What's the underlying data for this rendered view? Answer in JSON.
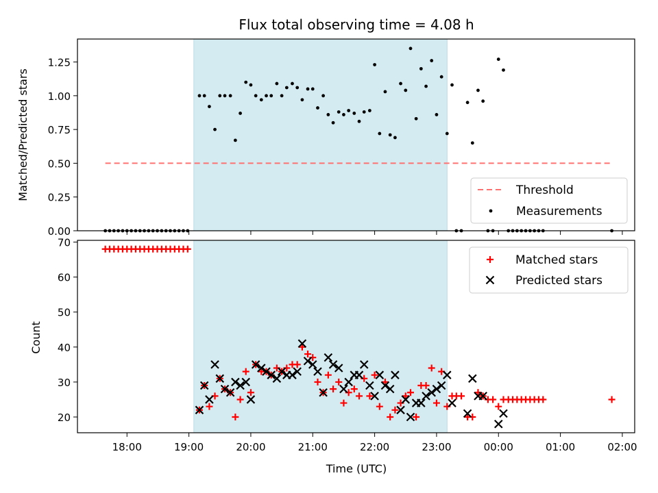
{
  "chart_data": [
    {
      "type": "scatter",
      "title": "Flux total observing time = 4.08 h",
      "xlabel": "",
      "ylabel": "Matched/Predicted stars",
      "ylim": [
        0,
        1.42
      ],
      "y_ticks": [
        0,
        0.25,
        0.5,
        0.75,
        1.0,
        1.25
      ],
      "y_tick_labels": [
        "0.00",
        "0.25",
        "0.50",
        "0.75",
        "1.00",
        "1.25"
      ],
      "x_range_hours": [
        17.2,
        26.2
      ],
      "shaded_region": {
        "start": 19.08,
        "end": 23.17,
        "color": "#d4ebf1"
      },
      "threshold": {
        "label": "Threshold",
        "value": 0.5,
        "x_start": 17.65,
        "x_end": 25.83,
        "color": "#ff7070"
      },
      "legend": {
        "position": "lower-right",
        "entries": [
          "Threshold",
          "Measurements"
        ]
      },
      "series": [
        {
          "name": "Measurements",
          "color": "#000000",
          "points": [
            [
              17.65,
              0
            ],
            [
              17.72,
              0
            ],
            [
              17.79,
              0
            ],
            [
              17.86,
              0
            ],
            [
              17.93,
              0
            ],
            [
              18.0,
              0
            ],
            [
              18.07,
              0
            ],
            [
              18.14,
              0
            ],
            [
              18.21,
              0
            ],
            [
              18.28,
              0
            ],
            [
              18.35,
              0
            ],
            [
              18.42,
              0
            ],
            [
              18.49,
              0
            ],
            [
              18.56,
              0
            ],
            [
              18.63,
              0
            ],
            [
              18.7,
              0
            ],
            [
              18.77,
              0
            ],
            [
              18.84,
              0
            ],
            [
              18.91,
              0
            ],
            [
              18.98,
              0
            ],
            [
              19.17,
              1.0
            ],
            [
              19.25,
              1.0
            ],
            [
              19.33,
              0.92
            ],
            [
              19.42,
              0.75
            ],
            [
              19.5,
              1.0
            ],
            [
              19.58,
              1.0
            ],
            [
              19.67,
              1.0
            ],
            [
              19.75,
              0.67
            ],
            [
              19.83,
              0.87
            ],
            [
              19.92,
              1.1
            ],
            [
              20.0,
              1.08
            ],
            [
              20.08,
              1.0
            ],
            [
              20.17,
              0.97
            ],
            [
              20.25,
              1.0
            ],
            [
              20.33,
              1.0
            ],
            [
              20.42,
              1.09
            ],
            [
              20.5,
              1.0
            ],
            [
              20.58,
              1.06
            ],
            [
              20.67,
              1.09
            ],
            [
              20.75,
              1.06
            ],
            [
              20.83,
              0.97
            ],
            [
              20.92,
              1.05
            ],
            [
              21.0,
              1.05
            ],
            [
              21.08,
              0.91
            ],
            [
              21.17,
              1.0
            ],
            [
              21.25,
              0.86
            ],
            [
              21.33,
              0.8
            ],
            [
              21.42,
              0.88
            ],
            [
              21.5,
              0.86
            ],
            [
              21.58,
              0.89
            ],
            [
              21.67,
              0.87
            ],
            [
              21.75,
              0.81
            ],
            [
              21.83,
              0.88
            ],
            [
              21.92,
              0.89
            ],
            [
              22.0,
              1.23
            ],
            [
              22.08,
              0.72
            ],
            [
              22.17,
              1.03
            ],
            [
              22.25,
              0.71
            ],
            [
              22.33,
              0.69
            ],
            [
              22.42,
              1.09
            ],
            [
              22.5,
              1.04
            ],
            [
              22.58,
              1.35
            ],
            [
              22.67,
              0.83
            ],
            [
              22.75,
              1.2
            ],
            [
              22.83,
              1.07
            ],
            [
              22.92,
              1.26
            ],
            [
              23.0,
              0.86
            ],
            [
              23.08,
              1.14
            ],
            [
              23.17,
              0.72
            ],
            [
              23.25,
              1.08
            ],
            [
              23.32,
              0
            ],
            [
              23.4,
              0
            ],
            [
              23.5,
              0.95
            ],
            [
              23.58,
              0.65
            ],
            [
              23.67,
              1.04
            ],
            [
              23.75,
              0.96
            ],
            [
              23.83,
              0
            ],
            [
              23.91,
              0
            ],
            [
              24.0,
              1.27
            ],
            [
              24.08,
              1.19
            ],
            [
              24.16,
              0
            ],
            [
              24.23,
              0
            ],
            [
              24.3,
              0
            ],
            [
              24.37,
              0
            ],
            [
              24.44,
              0
            ],
            [
              24.51,
              0
            ],
            [
              24.58,
              0
            ],
            [
              24.65,
              0
            ],
            [
              24.72,
              0
            ],
            [
              25.83,
              0
            ]
          ]
        }
      ]
    },
    {
      "type": "scatter",
      "title": "",
      "xlabel": "Time (UTC)",
      "ylabel": "Count",
      "ylim": [
        15.5,
        70.5
      ],
      "y_ticks": [
        20,
        30,
        40,
        50,
        60,
        70
      ],
      "y_tick_labels": [
        "20",
        "30",
        "40",
        "50",
        "60",
        "70"
      ],
      "x_range_hours": [
        17.2,
        26.2
      ],
      "x_ticks": [
        18,
        19,
        20,
        21,
        22,
        23,
        24,
        25,
        26
      ],
      "x_tick_labels": [
        "18:00",
        "19:00",
        "20:00",
        "21:00",
        "22:00",
        "23:00",
        "00:00",
        "01:00",
        "02:00"
      ],
      "shaded_region": {
        "start": 19.08,
        "end": 23.17,
        "color": "#d4ebf1"
      },
      "legend": {
        "position": "top-right",
        "entries": [
          "Matched stars",
          "Predicted stars"
        ]
      },
      "series": [
        {
          "name": "Matched stars",
          "marker": "plus",
          "color": "#ff0000",
          "points": [
            [
              17.65,
              68
            ],
            [
              17.72,
              68
            ],
            [
              17.79,
              68
            ],
            [
              17.86,
              68
            ],
            [
              17.93,
              68
            ],
            [
              18.0,
              68
            ],
            [
              18.07,
              68
            ],
            [
              18.14,
              68
            ],
            [
              18.21,
              68
            ],
            [
              18.28,
              68
            ],
            [
              18.35,
              68
            ],
            [
              18.42,
              68
            ],
            [
              18.49,
              68
            ],
            [
              18.56,
              68
            ],
            [
              18.63,
              68
            ],
            [
              18.7,
              68
            ],
            [
              18.77,
              68
            ],
            [
              18.84,
              68
            ],
            [
              18.91,
              68
            ],
            [
              18.98,
              68
            ],
            [
              19.17,
              22
            ],
            [
              19.25,
              29
            ],
            [
              19.33,
              23
            ],
            [
              19.42,
              26
            ],
            [
              19.5,
              31
            ],
            [
              19.58,
              28
            ],
            [
              19.67,
              27
            ],
            [
              19.75,
              20
            ],
            [
              19.83,
              25
            ],
            [
              19.92,
              33
            ],
            [
              20.0,
              27
            ],
            [
              20.08,
              35
            ],
            [
              20.17,
              33
            ],
            [
              20.25,
              33
            ],
            [
              20.33,
              32
            ],
            [
              20.42,
              34
            ],
            [
              20.5,
              33
            ],
            [
              20.58,
              34
            ],
            [
              20.67,
              35
            ],
            [
              20.75,
              35
            ],
            [
              20.83,
              40
            ],
            [
              20.92,
              38
            ],
            [
              21.0,
              37
            ],
            [
              21.08,
              30
            ],
            [
              21.17,
              27
            ],
            [
              21.25,
              32
            ],
            [
              21.33,
              28
            ],
            [
              21.42,
              30
            ],
            [
              21.5,
              24
            ],
            [
              21.58,
              27
            ],
            [
              21.67,
              28
            ],
            [
              21.75,
              26
            ],
            [
              21.83,
              31
            ],
            [
              21.92,
              26
            ],
            [
              22.0,
              32
            ],
            [
              22.08,
              23
            ],
            [
              22.17,
              30
            ],
            [
              22.25,
              20
            ],
            [
              22.33,
              22
            ],
            [
              22.42,
              24
            ],
            [
              22.5,
              26
            ],
            [
              22.58,
              27
            ],
            [
              22.67,
              20
            ],
            [
              22.75,
              29
            ],
            [
              22.83,
              29
            ],
            [
              22.92,
              34
            ],
            [
              23.0,
              24
            ],
            [
              23.08,
              33
            ],
            [
              23.17,
              23
            ],
            [
              23.25,
              26
            ],
            [
              23.32,
              26
            ],
            [
              23.4,
              26
            ],
            [
              23.5,
              20
            ],
            [
              23.58,
              20
            ],
            [
              23.67,
              27
            ],
            [
              23.75,
              26
            ],
            [
              23.83,
              25
            ],
            [
              23.91,
              25
            ],
            [
              24.0,
              23
            ],
            [
              24.08,
              25
            ],
            [
              24.16,
              25
            ],
            [
              24.23,
              25
            ],
            [
              24.3,
              25
            ],
            [
              24.37,
              25
            ],
            [
              24.44,
              25
            ],
            [
              24.51,
              25
            ],
            [
              24.58,
              25
            ],
            [
              24.65,
              25
            ],
            [
              24.72,
              25
            ],
            [
              25.83,
              25
            ]
          ]
        },
        {
          "name": "Predicted stars",
          "marker": "x",
          "color": "#000000",
          "points": [
            [
              19.17,
              22
            ],
            [
              19.25,
              29
            ],
            [
              19.33,
              25
            ],
            [
              19.42,
              35
            ],
            [
              19.5,
              31
            ],
            [
              19.58,
              28
            ],
            [
              19.67,
              27
            ],
            [
              19.75,
              30
            ],
            [
              19.83,
              29
            ],
            [
              19.92,
              30
            ],
            [
              20.0,
              25
            ],
            [
              20.08,
              35
            ],
            [
              20.17,
              34
            ],
            [
              20.25,
              33
            ],
            [
              20.33,
              32
            ],
            [
              20.42,
              31
            ],
            [
              20.5,
              33
            ],
            [
              20.58,
              32
            ],
            [
              20.67,
              32
            ],
            [
              20.75,
              33
            ],
            [
              20.83,
              41
            ],
            [
              20.92,
              36
            ],
            [
              21.0,
              35
            ],
            [
              21.08,
              33
            ],
            [
              21.17,
              27
            ],
            [
              21.25,
              37
            ],
            [
              21.33,
              35
            ],
            [
              21.42,
              34
            ],
            [
              21.5,
              28
            ],
            [
              21.58,
              30
            ],
            [
              21.67,
              32
            ],
            [
              21.75,
              32
            ],
            [
              21.83,
              35
            ],
            [
              21.92,
              29
            ],
            [
              22.0,
              26
            ],
            [
              22.08,
              32
            ],
            [
              22.17,
              29
            ],
            [
              22.25,
              28
            ],
            [
              22.33,
              32
            ],
            [
              22.42,
              22
            ],
            [
              22.5,
              25
            ],
            [
              22.58,
              20
            ],
            [
              22.67,
              24
            ],
            [
              22.75,
              24
            ],
            [
              22.83,
              26
            ],
            [
              22.92,
              27
            ],
            [
              23.0,
              28
            ],
            [
              23.08,
              29
            ],
            [
              23.17,
              32
            ],
            [
              23.25,
              24
            ],
            [
              23.5,
              21
            ],
            [
              23.58,
              31
            ],
            [
              23.67,
              26
            ],
            [
              23.75,
              26
            ],
            [
              24.0,
              18
            ],
            [
              24.08,
              21
            ]
          ]
        }
      ]
    }
  ]
}
